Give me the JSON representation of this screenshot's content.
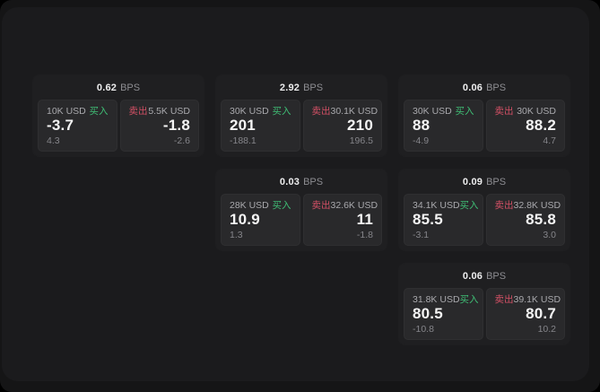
{
  "labels": {
    "bps_unit": "BPS",
    "buy": "买入",
    "sell": "卖出"
  },
  "colors": {
    "buy_green": "#3fbe75",
    "sell_red": "#d25065",
    "window_bg": "#1b1b1d",
    "card_bg": "#1f1f21",
    "panel_bg": "#29292b"
  },
  "cards": [
    {
      "bps": "0.62",
      "buy": {
        "amount": "10K USD",
        "price": "-3.7",
        "delta": "4.3"
      },
      "sell": {
        "amount": "5.5K USD",
        "price": "-1.8",
        "delta": "-2.6"
      }
    },
    {
      "bps": "2.92",
      "buy": {
        "amount": "30K USD",
        "price": "201",
        "delta": "-188.1"
      },
      "sell": {
        "amount": "30.1K USD",
        "price": "210",
        "delta": "196.5"
      }
    },
    {
      "bps": "0.06",
      "buy": {
        "amount": "30K USD",
        "price": "88",
        "delta": "-4.9"
      },
      "sell": {
        "amount": "30K USD",
        "price": "88.2",
        "delta": "4.7"
      }
    },
    {
      "bps": "0.03",
      "buy": {
        "amount": "28K USD",
        "price": "10.9",
        "delta": "1.3"
      },
      "sell": {
        "amount": "32.6K USD",
        "price": "11",
        "delta": "-1.8"
      }
    },
    {
      "bps": "0.09",
      "buy": {
        "amount": "34.1K USD",
        "price": "85.5",
        "delta": "-3.1"
      },
      "sell": {
        "amount": "32.8K USD",
        "price": "85.8",
        "delta": "3.0"
      }
    },
    {
      "bps": "0.06",
      "buy": {
        "amount": "31.8K USD",
        "price": "80.5",
        "delta": "-10.8"
      },
      "sell": {
        "amount": "39.1K USD",
        "price": "80.7",
        "delta": "10.2"
      }
    }
  ]
}
